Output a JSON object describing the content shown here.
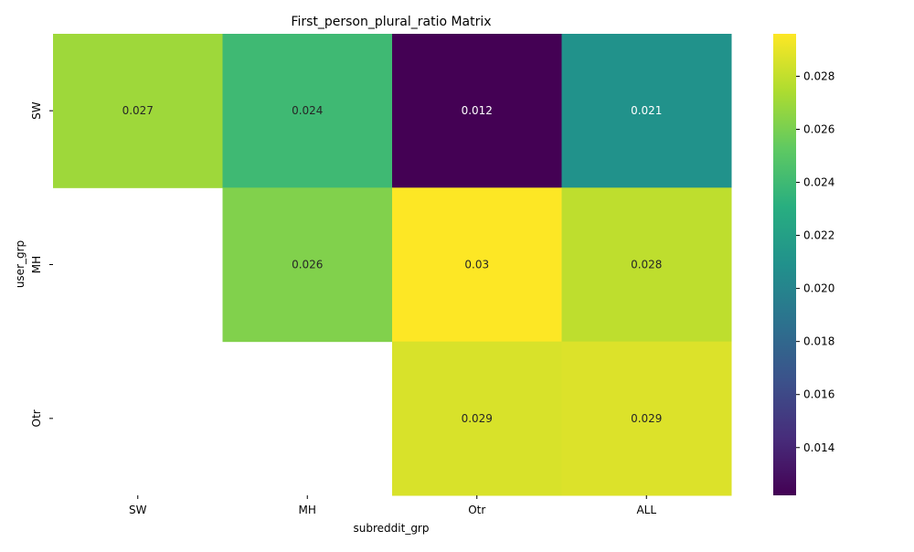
{
  "chart_data": {
    "type": "heatmap",
    "title": "First_person_plural_ratio Matrix",
    "xlabel": "subreddit_grp",
    "ylabel": "user_grp",
    "x_categories": [
      "SW",
      "MH",
      "Otr",
      "ALL"
    ],
    "y_categories": [
      "SW",
      "MH",
      "Otr"
    ],
    "values": [
      [
        0.027,
        0.024,
        0.0122,
        0.021
      ],
      [
        null,
        0.0262,
        0.0296,
        0.0279
      ],
      [
        null,
        null,
        0.0286,
        0.0287
      ]
    ],
    "annotations": [
      [
        "0.027",
        "0.024",
        "0.012",
        "0.021"
      ],
      [
        "",
        "0.026",
        "0.03",
        "0.028"
      ],
      [
        "",
        "",
        "0.029",
        "0.029"
      ]
    ],
    "colormap": "viridis",
    "vmin": 0.0122,
    "vmax": 0.0296,
    "colorbar_ticks": [
      "0.014",
      "0.016",
      "0.018",
      "0.020",
      "0.022",
      "0.024",
      "0.026",
      "0.028"
    ],
    "colorbar_tick_values": [
      0.014,
      0.016,
      0.018,
      0.02,
      0.022,
      0.024,
      0.026,
      0.028
    ],
    "grid": false,
    "legend": "colorbar-right"
  }
}
